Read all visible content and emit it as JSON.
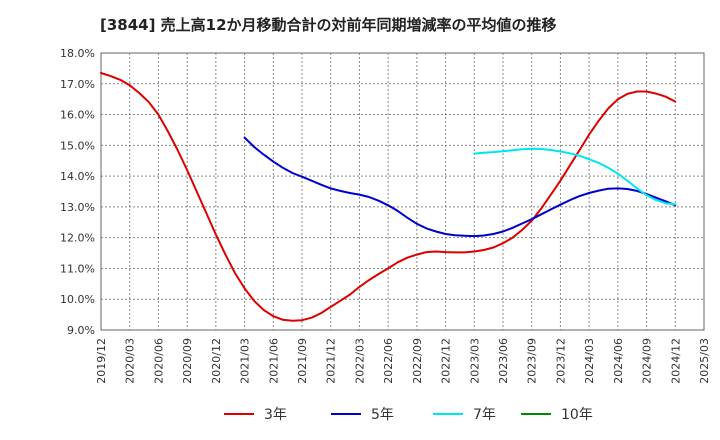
{
  "title": "[3844]  売上高12か月移動合計の対前年同期増減率の平均値の推移",
  "colors": {
    "3年": "#dd0000",
    "5年": "#0000cc",
    "7年": "#00e5ee",
    "10年": "#008800"
  },
  "chart_data": {
    "type": "line",
    "title": "[3844]  売上高12か月移動合計の対前年同期増減率の平均値の推移",
    "xlabel": "",
    "ylabel": "",
    "ylim": [
      9.0,
      18.0
    ],
    "y_ticks": [
      "9.0%",
      "10.0%",
      "11.0%",
      "12.0%",
      "13.0%",
      "14.0%",
      "15.0%",
      "16.0%",
      "17.0%",
      "18.0%"
    ],
    "x_ticks": [
      "2019/12",
      "2020/03",
      "2020/06",
      "2020/09",
      "2020/12",
      "2021/03",
      "2021/06",
      "2021/09",
      "2021/12",
      "2022/03",
      "2022/06",
      "2022/09",
      "2022/12",
      "2023/03",
      "2023/06",
      "2023/09",
      "2023/12",
      "2024/03",
      "2024/06",
      "2024/09",
      "2024/12",
      "2025/03"
    ],
    "grid": true,
    "legend_position": "bottom",
    "series": [
      {
        "name": "3年",
        "color": "#dd0000",
        "points": [
          [
            "2019/12",
            17.35
          ],
          [
            "2020/01",
            17.25
          ],
          [
            "2020/02",
            17.13
          ],
          [
            "2020/03",
            16.95
          ],
          [
            "2020/04",
            16.7
          ],
          [
            "2020/05",
            16.4
          ],
          [
            "2020/06",
            16.0
          ],
          [
            "2020/07",
            15.45
          ],
          [
            "2020/08",
            14.85
          ],
          [
            "2020/09",
            14.2
          ],
          [
            "2020/10",
            13.5
          ],
          [
            "2020/11",
            12.8
          ],
          [
            "2020/12",
            12.1
          ],
          [
            "2021/01",
            11.45
          ],
          [
            "2021/02",
            10.85
          ],
          [
            "2021/03",
            10.35
          ],
          [
            "2021/04",
            9.95
          ],
          [
            "2021/05",
            9.65
          ],
          [
            "2021/06",
            9.45
          ],
          [
            "2021/07",
            9.33
          ],
          [
            "2021/08",
            9.3
          ],
          [
            "2021/09",
            9.32
          ],
          [
            "2021/10",
            9.4
          ],
          [
            "2021/11",
            9.55
          ],
          [
            "2021/12",
            9.75
          ],
          [
            "2022/01",
            9.95
          ],
          [
            "2022/02",
            10.15
          ],
          [
            "2022/03",
            10.4
          ],
          [
            "2022/04",
            10.62
          ],
          [
            "2022/05",
            10.82
          ],
          [
            "2022/06",
            11.0
          ],
          [
            "2022/07",
            11.2
          ],
          [
            "2022/08",
            11.35
          ],
          [
            "2022/09",
            11.45
          ],
          [
            "2022/10",
            11.53
          ],
          [
            "2022/11",
            11.55
          ],
          [
            "2022/12",
            11.53
          ],
          [
            "2023/01",
            11.52
          ],
          [
            "2023/02",
            11.52
          ],
          [
            "2023/03",
            11.55
          ],
          [
            "2023/04",
            11.6
          ],
          [
            "2023/05",
            11.68
          ],
          [
            "2023/06",
            11.82
          ],
          [
            "2023/07",
            12.0
          ],
          [
            "2023/08",
            12.25
          ],
          [
            "2023/09",
            12.55
          ],
          [
            "2023/10",
            12.95
          ],
          [
            "2023/11",
            13.4
          ],
          [
            "2023/12",
            13.85
          ],
          [
            "2024/01",
            14.35
          ],
          [
            "2024/02",
            14.85
          ],
          [
            "2024/03",
            15.35
          ],
          [
            "2024/04",
            15.8
          ],
          [
            "2024/05",
            16.2
          ],
          [
            "2024/06",
            16.5
          ],
          [
            "2024/07",
            16.67
          ],
          [
            "2024/08",
            16.75
          ],
          [
            "2024/09",
            16.75
          ],
          [
            "2024/10",
            16.68
          ],
          [
            "2024/11",
            16.58
          ],
          [
            "2024/12",
            16.42
          ]
        ]
      },
      {
        "name": "5年",
        "color": "#0000cc",
        "points": [
          [
            "2021/03",
            15.25
          ],
          [
            "2021/04",
            14.95
          ],
          [
            "2021/05",
            14.7
          ],
          [
            "2021/06",
            14.47
          ],
          [
            "2021/07",
            14.27
          ],
          [
            "2021/08",
            14.1
          ],
          [
            "2021/09",
            13.98
          ],
          [
            "2021/10",
            13.85
          ],
          [
            "2021/11",
            13.72
          ],
          [
            "2021/12",
            13.6
          ],
          [
            "2022/01",
            13.52
          ],
          [
            "2022/02",
            13.45
          ],
          [
            "2022/03",
            13.4
          ],
          [
            "2022/04",
            13.32
          ],
          [
            "2022/05",
            13.2
          ],
          [
            "2022/06",
            13.05
          ],
          [
            "2022/07",
            12.87
          ],
          [
            "2022/08",
            12.65
          ],
          [
            "2022/09",
            12.45
          ],
          [
            "2022/10",
            12.3
          ],
          [
            "2022/11",
            12.2
          ],
          [
            "2022/12",
            12.12
          ],
          [
            "2023/01",
            12.08
          ],
          [
            "2023/02",
            12.06
          ],
          [
            "2023/03",
            12.05
          ],
          [
            "2023/04",
            12.07
          ],
          [
            "2023/05",
            12.12
          ],
          [
            "2023/06",
            12.2
          ],
          [
            "2023/07",
            12.32
          ],
          [
            "2023/08",
            12.46
          ],
          [
            "2023/09",
            12.6
          ],
          [
            "2023/10",
            12.76
          ],
          [
            "2023/11",
            12.92
          ],
          [
            "2023/12",
            13.07
          ],
          [
            "2024/01",
            13.22
          ],
          [
            "2024/02",
            13.35
          ],
          [
            "2024/03",
            13.45
          ],
          [
            "2024/04",
            13.53
          ],
          [
            "2024/05",
            13.59
          ],
          [
            "2024/06",
            13.6
          ],
          [
            "2024/07",
            13.58
          ],
          [
            "2024/08",
            13.52
          ],
          [
            "2024/09",
            13.42
          ],
          [
            "2024/10",
            13.3
          ],
          [
            "2024/11",
            13.18
          ],
          [
            "2024/12",
            13.05
          ]
        ]
      },
      {
        "name": "7年",
        "color": "#00e5ee",
        "points": [
          [
            "2023/03",
            14.73
          ],
          [
            "2023/04",
            14.76
          ],
          [
            "2023/05",
            14.78
          ],
          [
            "2023/06",
            14.81
          ],
          [
            "2023/07",
            14.84
          ],
          [
            "2023/08",
            14.87
          ],
          [
            "2023/09",
            14.89
          ],
          [
            "2023/10",
            14.88
          ],
          [
            "2023/11",
            14.85
          ],
          [
            "2023/12",
            14.8
          ],
          [
            "2024/01",
            14.74
          ],
          [
            "2024/02",
            14.66
          ],
          [
            "2024/03",
            14.55
          ],
          [
            "2024/04",
            14.43
          ],
          [
            "2024/05",
            14.27
          ],
          [
            "2024/06",
            14.08
          ],
          [
            "2024/07",
            13.85
          ],
          [
            "2024/08",
            13.6
          ],
          [
            "2024/09",
            13.38
          ],
          [
            "2024/10",
            13.22
          ],
          [
            "2024/11",
            13.12
          ],
          [
            "2024/12",
            13.08
          ]
        ]
      },
      {
        "name": "10年",
        "color": "#008800",
        "points": []
      }
    ]
  }
}
